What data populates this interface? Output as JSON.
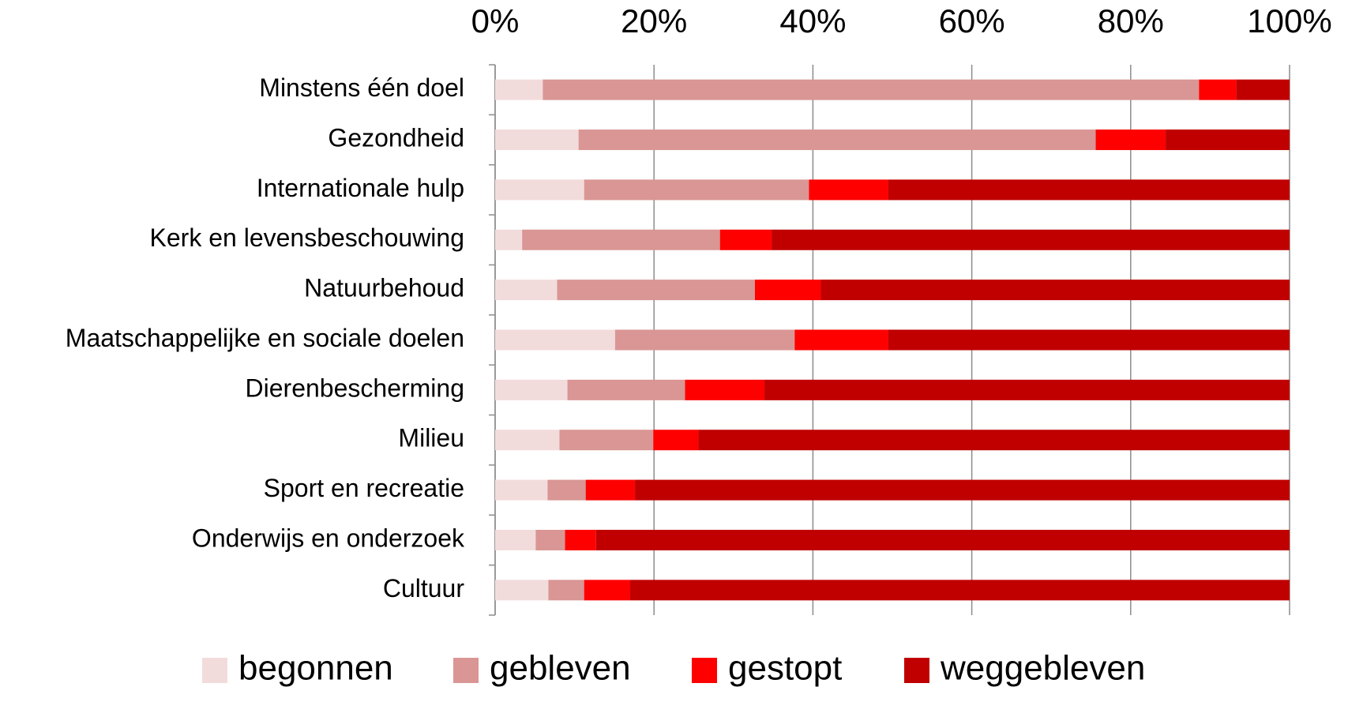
{
  "chart_data": {
    "type": "stacked-bar-horizontal",
    "categories": [
      "Minstens één doel",
      "Gezondheid",
      "Internationale hulp",
      "Kerk en levensbeschouwing",
      "Natuurbehoud",
      "Maatschappelijke en sociale doelen",
      "Dierenbescherming",
      "Milieu",
      "Sport en recreatie",
      "Onderwijs en onderzoek",
      "Cultuur"
    ],
    "series": [
      {
        "name": "begonnen",
        "color": "#f2dcdb",
        "values": [
          6.0,
          10.5,
          11.2,
          3.4,
          7.8,
          15.1,
          9.1,
          8.1,
          6.6,
          5.1,
          6.7
        ]
      },
      {
        "name": "gebleven",
        "color": "#d99694",
        "values": [
          82.6,
          65.1,
          28.3,
          24.9,
          24.9,
          22.6,
          14.8,
          11.8,
          4.8,
          3.7,
          4.5
        ]
      },
      {
        "name": "gestopt",
        "color": "#ff0000",
        "values": [
          4.7,
          8.8,
          10.0,
          6.5,
          8.3,
          11.8,
          10.0,
          5.7,
          6.2,
          3.9,
          5.8
        ]
      },
      {
        "name": "weggebleven",
        "color": "#c00000",
        "values": [
          6.7,
          15.6,
          50.5,
          65.2,
          59.0,
          50.5,
          66.1,
          74.4,
          82.4,
          87.3,
          83.0
        ]
      }
    ],
    "xlim": [
      0,
      100
    ],
    "xticks": [
      {
        "value": 0,
        "label": "0%"
      },
      {
        "value": 20,
        "label": "20%"
      },
      {
        "value": 40,
        "label": "40%"
      },
      {
        "value": 60,
        "label": "60%"
      },
      {
        "value": 80,
        "label": "80%"
      },
      {
        "value": 100,
        "label": "100%"
      }
    ],
    "grid": true,
    "legend": "bottom"
  }
}
